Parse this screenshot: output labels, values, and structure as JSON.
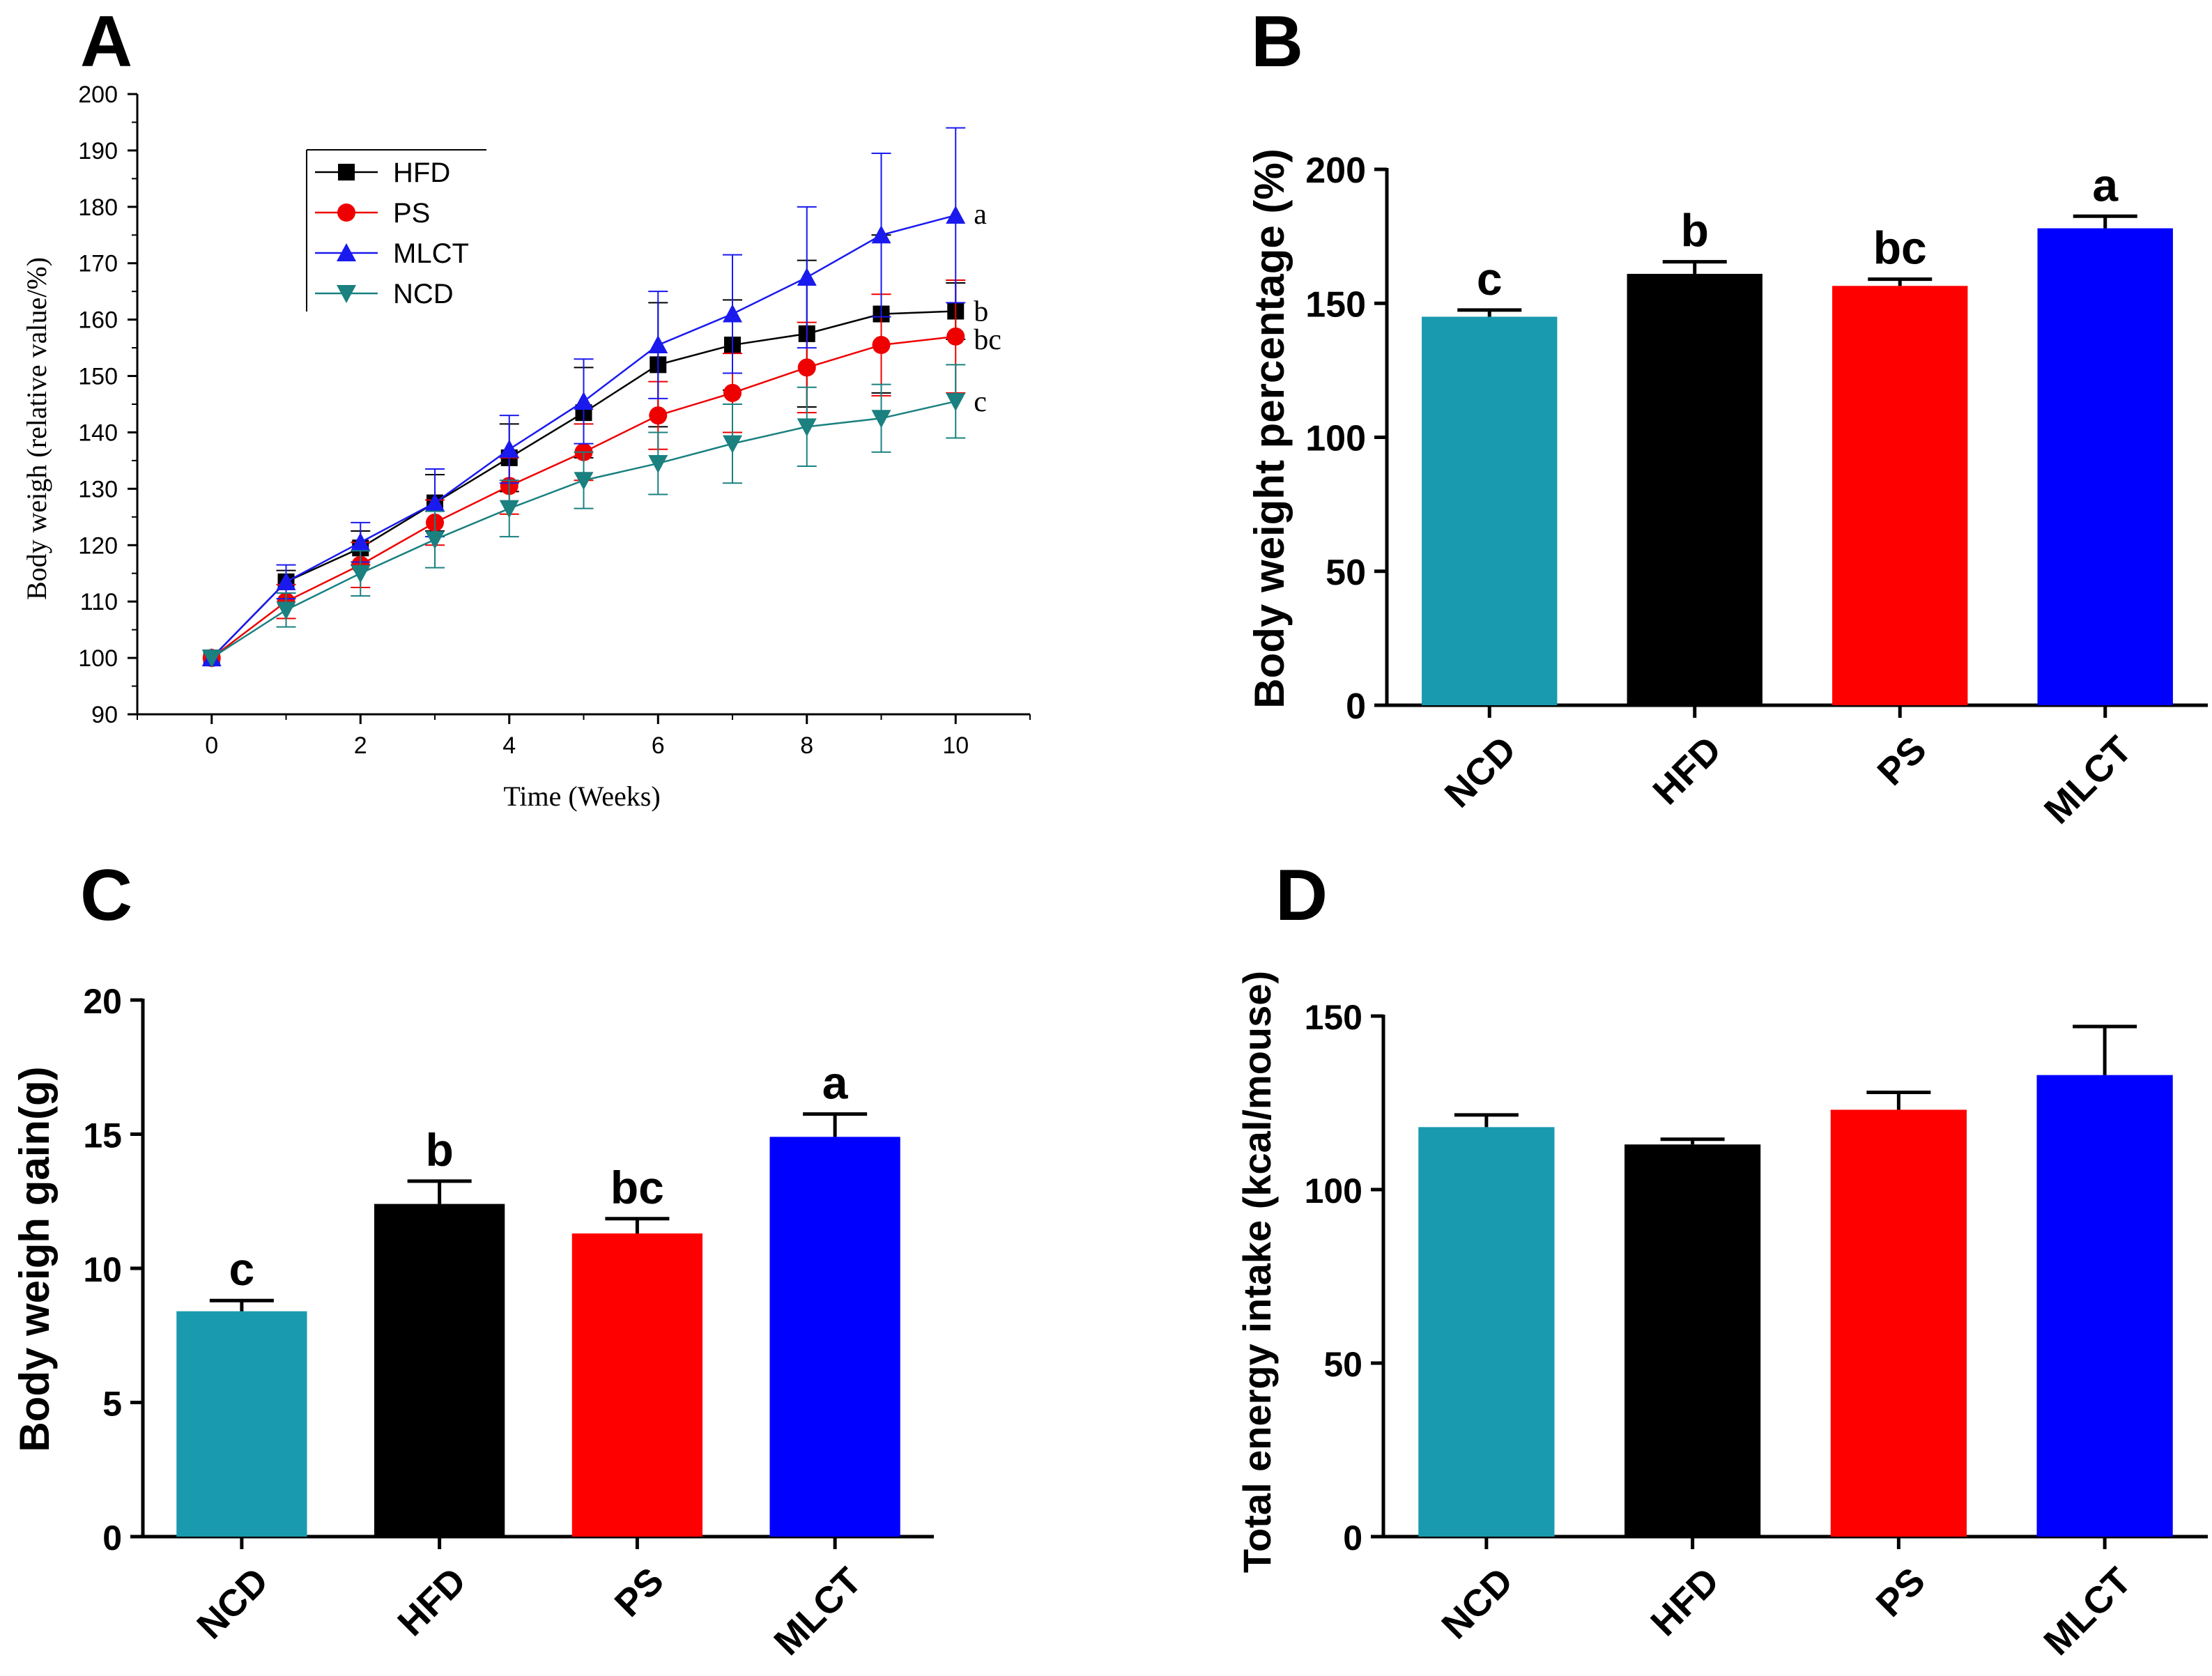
{
  "panel_labels": [
    "A",
    "B",
    "C",
    "D"
  ],
  "chart_data": [
    {
      "panel": "A",
      "type": "line",
      "title": "",
      "xlabel": "Time (Weeks)",
      "ylabel": "Body weigh (relative value/%)",
      "xlim": [
        -1,
        11
      ],
      "ylim": [
        90,
        200
      ],
      "xticks": [
        0,
        2,
        4,
        6,
        8,
        10
      ],
      "yticks": [
        90,
        100,
        110,
        120,
        130,
        140,
        150,
        160,
        170,
        180,
        190,
        200
      ],
      "x": [
        0,
        1,
        2,
        3,
        4,
        5,
        6,
        7,
        8,
        9,
        10
      ],
      "series": [
        {
          "name": "HFD",
          "color": "#000000",
          "marker": "square",
          "values": [
            100,
            113.5,
            119.5,
            127.5,
            135.5,
            143.5,
            152,
            155.5,
            157.5,
            161,
            161.5
          ],
          "errors": [
            0,
            2,
            3,
            5,
            6,
            8,
            11,
            8,
            13,
            14,
            5
          ],
          "sig": "b"
        },
        {
          "name": "PS",
          "color": "#ee0000",
          "marker": "circle",
          "values": [
            100,
            110,
            116.5,
            124,
            130.5,
            136.5,
            143,
            147,
            151.5,
            155.5,
            157
          ],
          "errors": [
            0,
            3,
            4,
            4,
            5,
            5,
            6,
            7,
            8,
            9,
            10
          ],
          "sig": "bc"
        },
        {
          "name": "MLCT",
          "color": "#1a1aee",
          "marker": "triangle-up",
          "values": [
            100,
            113.5,
            120.5,
            127.5,
            137,
            145.5,
            155.5,
            161,
            167.5,
            175,
            178.5
          ],
          "errors": [
            0,
            3,
            3.5,
            6,
            6,
            7.5,
            9.5,
            10.5,
            12.5,
            14.5,
            15.5
          ],
          "sig": "a"
        },
        {
          "name": "NCD",
          "color": "#1a8080",
          "marker": "triangle-down",
          "values": [
            100,
            108.5,
            115,
            121,
            126.5,
            131.5,
            134.5,
            138,
            141,
            142.5,
            145.5
          ],
          "errors": [
            0,
            3,
            4,
            5,
            5,
            5,
            5.5,
            7,
            7,
            6,
            6.5
          ],
          "sig": "c"
        }
      ],
      "legend_position": "top-left"
    },
    {
      "panel": "B",
      "type": "bar",
      "title": "",
      "xlabel": "",
      "ylabel": "Body weight percentage (%)",
      "ylim": [
        0,
        200
      ],
      "yticks": [
        0,
        50,
        100,
        150,
        200
      ],
      "categories": [
        "NCD",
        "HFD",
        "PS",
        "MLCT"
      ],
      "values": [
        145,
        161,
        156.5,
        178
      ],
      "errors": [
        2.5,
        4.5,
        2.5,
        4.5
      ],
      "colors": [
        "#199aae",
        "#000000",
        "#ff0000",
        "#0000ff"
      ],
      "labels": [
        "c",
        "b",
        "bc",
        "a"
      ]
    },
    {
      "panel": "C",
      "type": "bar",
      "title": "",
      "xlabel": "",
      "ylabel": "Body weigh gain(g)",
      "ylim": [
        0,
        20
      ],
      "yticks": [
        0,
        5,
        10,
        15,
        20
      ],
      "categories": [
        "NCD",
        "HFD",
        "PS",
        "MLCT"
      ],
      "values": [
        8.4,
        12.4,
        11.3,
        14.9
      ],
      "errors": [
        0.4,
        0.85,
        0.55,
        0.85
      ],
      "colors": [
        "#199aae",
        "#000000",
        "#ff0000",
        "#0000ff"
      ],
      "labels": [
        "c",
        "b",
        "bc",
        "a"
      ]
    },
    {
      "panel": "D",
      "type": "bar",
      "title": "",
      "xlabel": "",
      "ylabel": "Total energy intake (kcal/mouse)",
      "ylim": [
        0,
        150
      ],
      "yticks": [
        0,
        50,
        100,
        150
      ],
      "categories": [
        "NCD",
        "HFD",
        "PS",
        "MLCT"
      ],
      "values": [
        118,
        113,
        123,
        133
      ],
      "errors": [
        3.5,
        1.5,
        5,
        14
      ],
      "colors": [
        "#199aae",
        "#000000",
        "#ff0000",
        "#0000ff"
      ],
      "labels": [
        "",
        "",
        "",
        ""
      ]
    }
  ]
}
